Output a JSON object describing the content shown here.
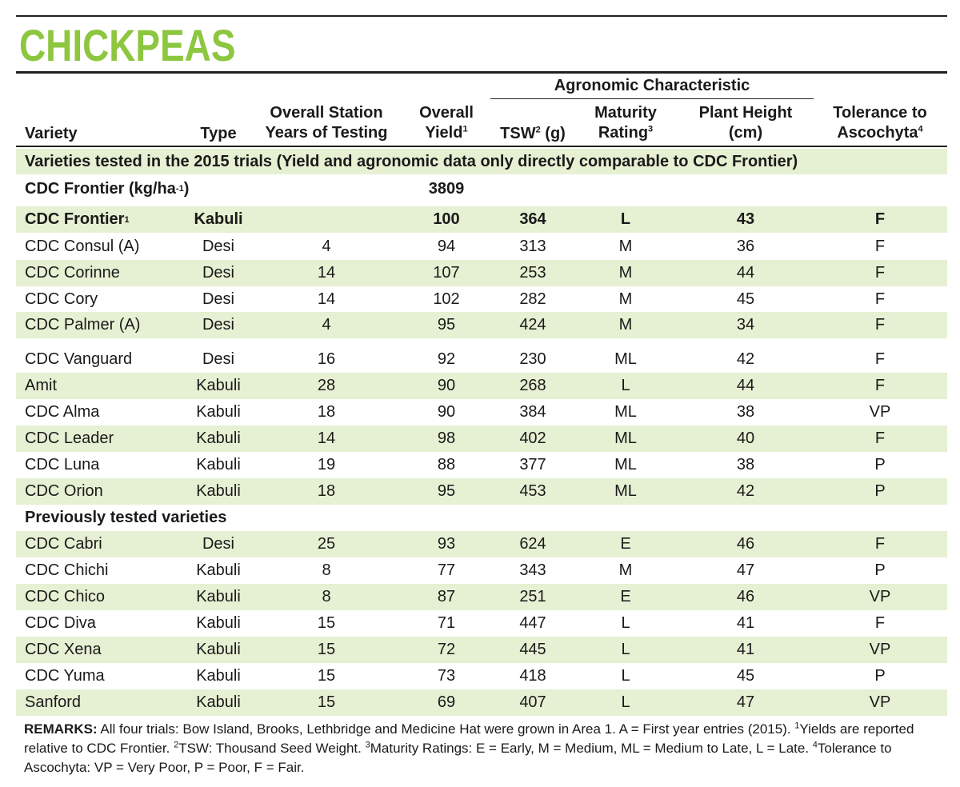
{
  "title": "CHICKPEAS",
  "group_header": "Agronomic Characteristic",
  "headers": {
    "variety": "Variety",
    "type": "Type",
    "years_line1": "Overall Station",
    "years_line2": "Years of Testing",
    "yield_line1": "Overall",
    "yield_line2": "Yield",
    "yield_sup": "1",
    "tsw": "TSW",
    "tsw_sup": "2",
    "tsw_unit": " (g)",
    "maturity_line1": "Maturity",
    "maturity_line2": "Rating",
    "maturity_sup": "3",
    "height_line1": "Plant Height",
    "height_line2": "(cm)",
    "tolerance_line1": "Tolerance to",
    "tolerance_line2": "Ascochyta",
    "tolerance_sup": "4"
  },
  "section_2015": "Varieties tested in the 2015 trials (Yield and agronomic data only directly comparable to CDC Frontier)",
  "baseline_label": "CDC Frontier (kg/ha",
  "baseline_sup": "-1",
  "baseline_close": ")",
  "baseline_value": "3809",
  "check_row": {
    "variety": "CDC Frontier",
    "variety_sup": "1",
    "type": "Kabuli",
    "years": "",
    "yield": "100",
    "tsw": "364",
    "maturity": "L",
    "height": "43",
    "tolerance": "F"
  },
  "rows_2015": [
    {
      "variety": "CDC Consul (A)",
      "type": "Desi",
      "years": "4",
      "yield": "94",
      "tsw": "313",
      "maturity": "M",
      "height": "36",
      "tolerance": "F"
    },
    {
      "variety": "CDC Corinne",
      "type": "Desi",
      "years": "14",
      "yield": "107",
      "tsw": "253",
      "maturity": "M",
      "height": "44",
      "tolerance": "F"
    },
    {
      "variety": "CDC Cory",
      "type": "Desi",
      "years": "14",
      "yield": "102",
      "tsw": "282",
      "maturity": "M",
      "height": "45",
      "tolerance": "F"
    },
    {
      "variety": "CDC Palmer (A)",
      "type": "Desi",
      "years": "4",
      "yield": "95",
      "tsw": "424",
      "maturity": "M",
      "height": "34",
      "tolerance": "F"
    },
    {
      "variety": "CDC Vanguard",
      "type": "Desi",
      "years": "16",
      "yield": "92",
      "tsw": "230",
      "maturity": "ML",
      "height": "42",
      "tolerance": "F"
    },
    {
      "variety": "Amit",
      "type": "Kabuli",
      "years": "28",
      "yield": "90",
      "tsw": "268",
      "maturity": "L",
      "height": "44",
      "tolerance": "F"
    },
    {
      "variety": "CDC Alma",
      "type": "Kabuli",
      "years": "18",
      "yield": "90",
      "tsw": "384",
      "maturity": "ML",
      "height": "38",
      "tolerance": "VP"
    },
    {
      "variety": "CDC Leader",
      "type": "Kabuli",
      "years": "14",
      "yield": "98",
      "tsw": "402",
      "maturity": "ML",
      "height": "40",
      "tolerance": "F"
    },
    {
      "variety": "CDC Luna",
      "type": "Kabuli",
      "years": "19",
      "yield": "88",
      "tsw": "377",
      "maturity": "ML",
      "height": "38",
      "tolerance": "P"
    },
    {
      "variety": "CDC Orion",
      "type": "Kabuli",
      "years": "18",
      "yield": "95",
      "tsw": "453",
      "maturity": "ML",
      "height": "42",
      "tolerance": "P"
    }
  ],
  "section_previous": "Previously tested varieties",
  "rows_previous": [
    {
      "variety": "CDC Cabri",
      "type": "Desi",
      "years": "25",
      "yield": "93",
      "tsw": "624",
      "maturity": "E",
      "height": "46",
      "tolerance": "F"
    },
    {
      "variety": "CDC Chichi",
      "type": "Kabuli",
      "years": "8",
      "yield": "77",
      "tsw": "343",
      "maturity": "M",
      "height": "47",
      "tolerance": "P"
    },
    {
      "variety": "CDC Chico",
      "type": "Kabuli",
      "years": "8",
      "yield": "87",
      "tsw": "251",
      "maturity": "E",
      "height": "46",
      "tolerance": "VP"
    },
    {
      "variety": "CDC Diva",
      "type": "Kabuli",
      "years": "15",
      "yield": "71",
      "tsw": "447",
      "maturity": "L",
      "height": "41",
      "tolerance": "F"
    },
    {
      "variety": "CDC Xena",
      "type": "Kabuli",
      "years": "15",
      "yield": "72",
      "tsw": "445",
      "maturity": "L",
      "height": "41",
      "tolerance": "VP"
    },
    {
      "variety": "CDC Yuma",
      "type": "Kabuli",
      "years": "15",
      "yield": "73",
      "tsw": "418",
      "maturity": "L",
      "height": "45",
      "tolerance": "P"
    },
    {
      "variety": "Sanford",
      "type": "Kabuli",
      "years": "15",
      "yield": "69",
      "tsw": "407",
      "maturity": "L",
      "height": "47",
      "tolerance": "VP"
    }
  ],
  "remarks_label": "REMARKS:",
  "remarks_a": " All four trials: Bow Island, Brooks, Lethbridge and Medicine Hat were grown in Area 1. A = First year entries (2015). ",
  "remarks_sup1": "1",
  "remarks_b": "Yields are reported relative to CDC Frontier. ",
  "remarks_sup2": "2",
  "remarks_c": "TSW: Thousand Seed Weight. ",
  "remarks_sup3": "3",
  "remarks_d": "Maturity Ratings: E = Early, M = Medium, ML = Medium to Late, L = Late. ",
  "remarks_sup4": "4",
  "remarks_e": "Tolerance to Ascochyta: VP = Very Poor, P = Poor, F = Fair.",
  "colors": {
    "title_green": "#8dc63f",
    "shade_green": "#e6f0d3",
    "rule": "#231f20"
  }
}
